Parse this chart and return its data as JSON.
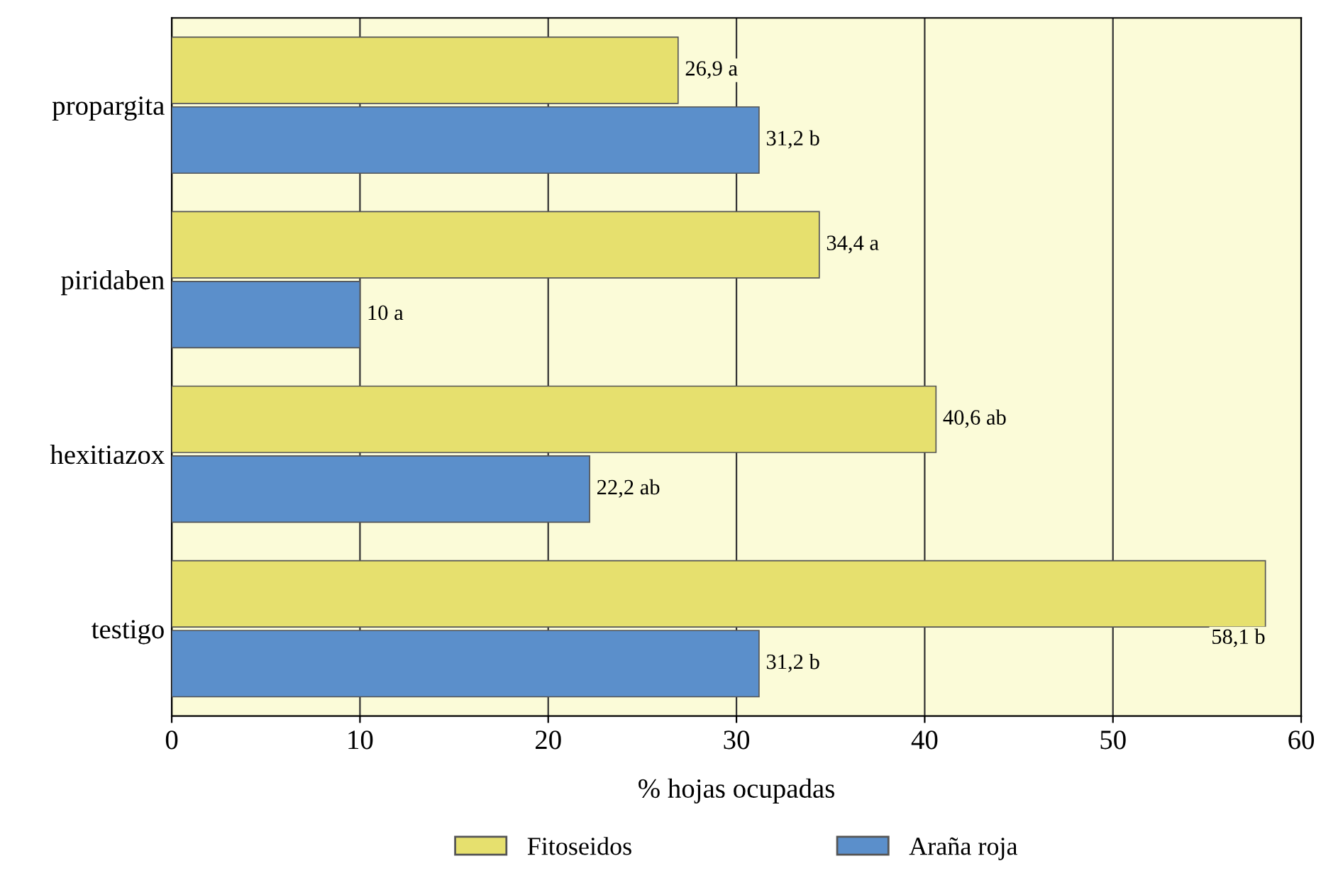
{
  "chart_data": {
    "type": "bar",
    "orientation": "horizontal",
    "xlabel": "% hojas ocupadas",
    "categories": [
      "propargita",
      "piridaben",
      "hexitiazox",
      "testigo"
    ],
    "series": [
      {
        "name": "Fitoseidos",
        "color": "#e6e06e",
        "values": [
          26.9,
          34.4,
          40.6,
          58.1
        ],
        "value_labels": [
          "26,9 a",
          "34,4 a",
          "40,6 ab",
          "58,1 b"
        ]
      },
      {
        "name": "Araña roja",
        "color": "#5b8fcb",
        "values": [
          31.2,
          10,
          22.2,
          31.2
        ],
        "value_labels": [
          "31,2 b",
          "10 a",
          "22,2 ab",
          "31,2 b"
        ]
      }
    ],
    "xlim": [
      0,
      60
    ],
    "xticks": [
      0,
      10,
      20,
      30,
      40,
      50,
      60
    ],
    "grid": "x",
    "legend": "bottom"
  }
}
